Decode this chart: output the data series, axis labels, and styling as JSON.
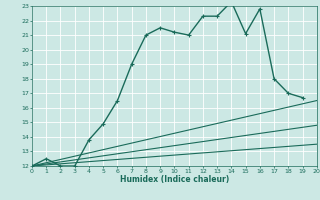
{
  "xlabel": "Humidex (Indice chaleur)",
  "bg_color": "#cce8e4",
  "grid_color": "#ffffff",
  "line_color": "#1a6b5a",
  "xlim": [
    0,
    20
  ],
  "ylim": [
    12,
    23
  ],
  "xticks": [
    0,
    1,
    2,
    3,
    4,
    5,
    6,
    7,
    8,
    9,
    10,
    11,
    12,
    13,
    14,
    15,
    16,
    17,
    18,
    19,
    20
  ],
  "yticks": [
    12,
    13,
    14,
    15,
    16,
    17,
    18,
    19,
    20,
    21,
    22,
    23
  ],
  "series": [
    {
      "x": [
        0,
        1,
        2,
        3,
        4,
        5,
        6,
        7,
        8,
        9,
        10,
        11,
        12,
        13,
        14,
        15,
        16,
        17,
        18,
        19
      ],
      "y": [
        12,
        12.5,
        12,
        12,
        13.8,
        14.9,
        16.5,
        19.0,
        21.0,
        21.5,
        21.2,
        21.0,
        22.3,
        22.3,
        23.3,
        21.1,
        22.8,
        18.0,
        17.0,
        16.7
      ],
      "marker": "+",
      "linestyle": "-",
      "linewidth": 1.0
    },
    {
      "x": [
        0,
        20
      ],
      "y": [
        12,
        16.5
      ],
      "marker": null,
      "linestyle": "-",
      "linewidth": 0.8
    },
    {
      "x": [
        0,
        20
      ],
      "y": [
        12,
        14.8
      ],
      "marker": null,
      "linestyle": "-",
      "linewidth": 0.8
    },
    {
      "x": [
        0,
        20
      ],
      "y": [
        12,
        13.5
      ],
      "marker": null,
      "linestyle": "-",
      "linewidth": 0.8
    }
  ]
}
